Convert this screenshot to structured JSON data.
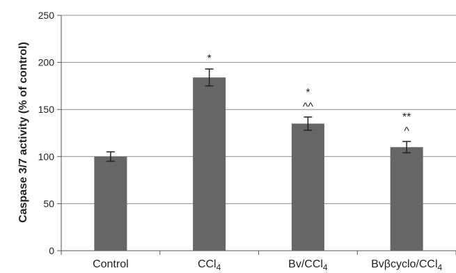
{
  "chart_data": {
    "type": "bar",
    "title": "",
    "xlabel": "",
    "ylabel": "Caspase 3/7 activity (% of control)",
    "ylim": [
      0,
      250
    ],
    "yticks": [
      0,
      50,
      100,
      150,
      200,
      250
    ],
    "grid": true,
    "categories": [
      {
        "main": "Control",
        "sub": ""
      },
      {
        "main": "CCl",
        "sub": "4"
      },
      {
        "main": "Bv/CCl",
        "sub": "4"
      },
      {
        "main": "Bvβcyclo/CCl",
        "sub": "4"
      }
    ],
    "values": [
      100,
      184,
      135,
      110
    ],
    "errors": [
      5,
      9,
      7,
      6
    ],
    "annotations": [
      [],
      [
        "*"
      ],
      [
        "*",
        "^^"
      ],
      [
        "**",
        "^"
      ]
    ],
    "colors": {
      "bar": "#666666",
      "grid": "#8c8c8c",
      "axis": "#555555",
      "text": "#222222"
    }
  }
}
